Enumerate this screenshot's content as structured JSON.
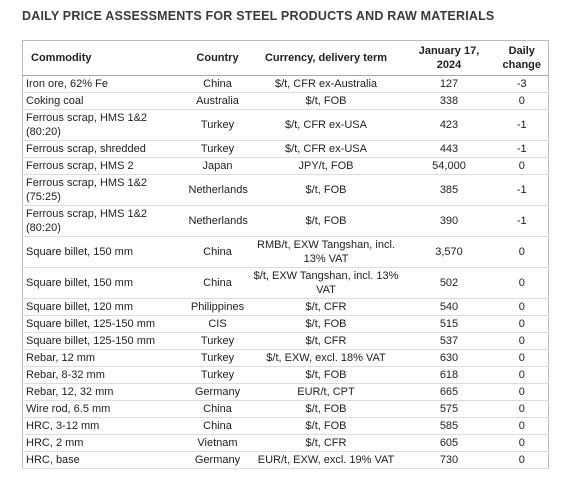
{
  "header": {
    "title": "DAILY PRICE ASSESSMENTS FOR STEEL PRODUCTS AND RAW MATERIALS"
  },
  "table": {
    "columns": [
      "Commodity",
      "Country",
      "Currency, delivery term",
      "January 17, 2024",
      "Daily change"
    ],
    "rows": [
      [
        "Iron ore, 62% Fe",
        "China",
        "$/t, CFR ex-Australia",
        "127",
        "-3"
      ],
      [
        "Coking coal",
        "Australia",
        "$/t, FOB",
        "338",
        "0"
      ],
      [
        "Ferrous scrap, HMS 1&2 (80:20)",
        "Turkey",
        "$/t, CFR ex-USA",
        "423",
        "-1"
      ],
      [
        "Ferrous scrap, shredded",
        "Turkey",
        "$/t, CFR ex-USA",
        "443",
        "-1"
      ],
      [
        "Ferrous scrap, HMS 2",
        "Japan",
        "JPY/t, FOB",
        "54,000",
        "0"
      ],
      [
        "Ferrous scrap, HMS 1&2 (75:25)",
        "Netherlands",
        "$/t, FOB",
        "385",
        "-1"
      ],
      [
        "Ferrous scrap, HMS 1&2 (80:20)",
        "Netherlands",
        "$/t, FOB",
        "390",
        "-1"
      ],
      [
        "Square billet, 150 mm",
        "China",
        "RMB/t, EXW Tangshan, incl. 13% VAT",
        "3,570",
        "0"
      ],
      [
        "Square billet, 150 mm",
        "China",
        "$/t, EXW Tangshan, incl. 13% VAT",
        "502",
        "0"
      ],
      [
        "Square billet, 120 mm",
        "Philippines",
        "$/t, CFR",
        "540",
        "0"
      ],
      [
        "Square billet, 125-150 mm",
        "CIS",
        "$/t, FOB",
        "515",
        "0"
      ],
      [
        "Square billet, 125-150 mm",
        "Turkey",
        "$/t, CFR",
        "537",
        "0"
      ],
      [
        "Rebar, 12 mm",
        "Turkey",
        "$/t, EXW, excl. 18% VAT",
        "630",
        "0"
      ],
      [
        "Rebar, 8-32 mm",
        "Turkey",
        "$/t, FOB",
        "618",
        "0"
      ],
      [
        "Rebar, 12, 32 mm",
        "Germany",
        "EUR/t, CPT",
        "665",
        "0"
      ],
      [
        "Wire rod, 6.5 mm",
        "China",
        "$/t, FOB",
        "575",
        "0"
      ],
      [
        "HRC, 3-12 mm",
        "China",
        "$/t, FOB",
        "585",
        "0"
      ],
      [
        "HRC, 2 mm",
        "Vietnam",
        "$/t, CFR",
        "605",
        "0"
      ],
      [
        "HRC, base",
        "Germany",
        "EUR/t, EXW, excl. 19% VAT",
        "730",
        "0"
      ]
    ]
  }
}
